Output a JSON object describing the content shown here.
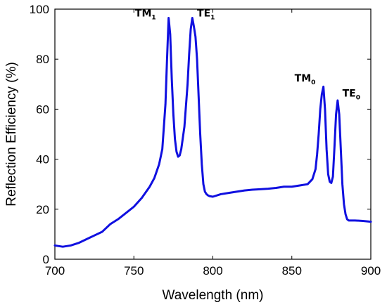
{
  "chart_data": {
    "type": "line",
    "title": "",
    "xlabel": "Wavelength (nm)",
    "ylabel": "Reflection Efficiency (%)",
    "xlim": [
      700,
      900
    ],
    "ylim": [
      0,
      100
    ],
    "grid": false,
    "xticks": [
      700,
      750,
      800,
      850,
      900
    ],
    "yticks": [
      0,
      20,
      40,
      60,
      80,
      100
    ],
    "series": [
      {
        "color": "#1010e0",
        "x": [
          700,
          705,
          710,
          715,
          720,
          725,
          730,
          735,
          740,
          745,
          750,
          755,
          760,
          763,
          766,
          768,
          770,
          771,
          772,
          773,
          774,
          775,
          776,
          777,
          778,
          779,
          780,
          782,
          784,
          785,
          786,
          787,
          788,
          789,
          790,
          791,
          792,
          793,
          794,
          795,
          796,
          797,
          798,
          800,
          805,
          810,
          815,
          820,
          825,
          830,
          835,
          840,
          845,
          850,
          855,
          860,
          863,
          865,
          866,
          867,
          868,
          869,
          870,
          871,
          872,
          873,
          874,
          875,
          876,
          877,
          878,
          879,
          880,
          881,
          882,
          883,
          884,
          885,
          886,
          888,
          890,
          895,
          900
        ],
        "y": [
          5.5,
          5,
          5.5,
          6.5,
          8,
          9.5,
          11,
          14,
          16,
          18.5,
          21,
          24.5,
          29,
          32.5,
          38,
          44,
          62,
          80,
          96.5,
          90,
          72,
          58,
          48,
          43,
          41,
          41.5,
          44,
          53,
          70,
          82,
          92,
          96.5,
          93,
          89,
          80,
          65,
          50,
          38,
          30,
          27,
          26,
          25.5,
          25.2,
          25,
          26,
          26.5,
          27,
          27.5,
          27.8,
          28,
          28.2,
          28.5,
          29,
          29,
          29.5,
          30,
          32,
          36,
          42,
          50,
          60,
          66,
          69,
          60,
          44,
          34,
          31,
          30.5,
          33,
          45,
          58,
          63.5,
          58,
          44,
          30,
          22,
          18,
          16,
          15.5,
          15.5,
          15.5,
          15.3,
          15
        ]
      }
    ],
    "annotations": [
      {
        "text": "TM",
        "sub": "1",
        "x": 764,
        "y": 97
      },
      {
        "text": "TE",
        "sub": "1",
        "x": 790,
        "y": 97
      },
      {
        "text": "TM",
        "sub": "0",
        "x": 865,
        "y": 71
      },
      {
        "text": "TE",
        "sub": "0",
        "x": 882,
        "y": 65
      }
    ]
  }
}
